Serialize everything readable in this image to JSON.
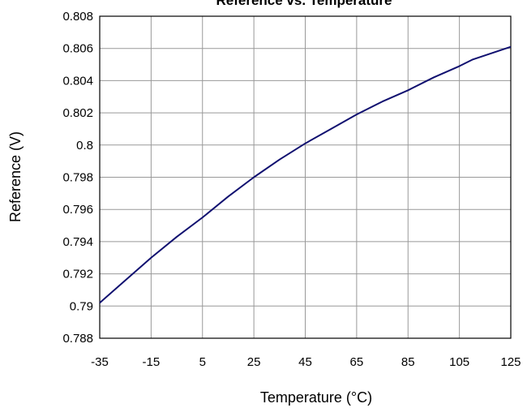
{
  "chart_data": {
    "type": "line",
    "title": "Reference vs. Temperature",
    "xlabel": "Temperature (°C)",
    "ylabel": "Reference (V)",
    "xlim": [
      -35,
      125
    ],
    "ylim": [
      0.788,
      0.808
    ],
    "x_ticks": [
      "-35",
      "-15",
      "5",
      "25",
      "45",
      "65",
      "85",
      "105",
      "125"
    ],
    "y_ticks": [
      "0.788",
      "0.79",
      "0.792",
      "0.794",
      "0.796",
      "0.798",
      "0.8",
      "0.802",
      "0.804",
      "0.806",
      "0.808"
    ],
    "grid": true,
    "series": [
      {
        "color": "#101070",
        "x": [
          -35,
          -25,
          -15,
          -5,
          5,
          15,
          25,
          35,
          45,
          55,
          65,
          75,
          85,
          95,
          105,
          110,
          125
        ],
        "y": [
          0.7902,
          0.7916,
          0.793,
          0.7943,
          0.7955,
          0.7968,
          0.798,
          0.7991,
          0.8001,
          0.801,
          0.8019,
          0.8027,
          0.8034,
          0.8042,
          0.8049,
          0.8053,
          0.8061
        ]
      }
    ]
  }
}
